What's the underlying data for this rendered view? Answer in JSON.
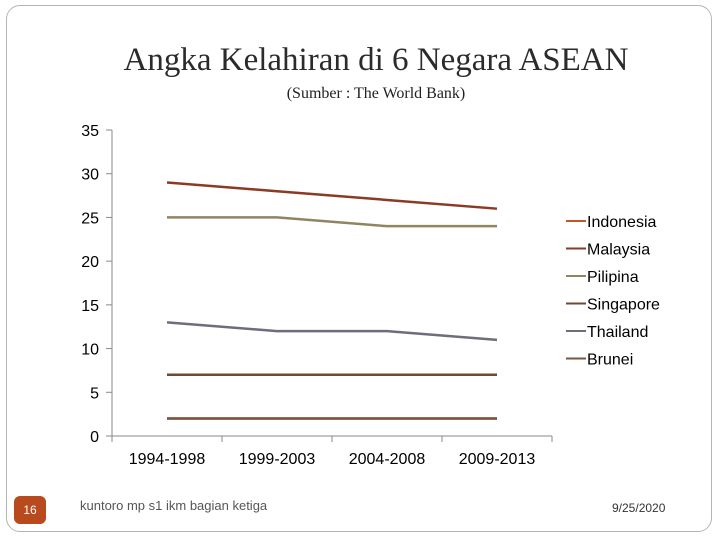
{
  "chart_data": {
    "type": "line",
    "title": "Angka Kelahiran di  6 Negara ASEAN",
    "subtitle": "(Sumber : The World Bank)",
    "categories": [
      "1994-1998",
      "1999-2003",
      "2004-2008",
      "2009-2013"
    ],
    "ylim": [
      0,
      35
    ],
    "yticks": [
      0,
      5,
      10,
      15,
      20,
      25,
      30,
      35
    ],
    "series": [
      {
        "name": "Indonesia",
        "color": "#c0572b",
        "values": [
          2,
          2,
          2,
          2
        ]
      },
      {
        "name": "Malaysia",
        "color": "#8b3a24",
        "values": [
          29,
          28,
          27,
          26
        ]
      },
      {
        "name": "Pilipina",
        "color": "#8f8561",
        "values": [
          25,
          25,
          24,
          24
        ]
      },
      {
        "name": "Singapore",
        "color": "#6e4a36",
        "values": [
          7,
          7,
          7,
          7
        ]
      },
      {
        "name": "Thailand",
        "color": "#6d6d7c",
        "values": [
          13,
          12,
          12,
          11
        ]
      },
      {
        "name": "Brunei",
        "color": "#7a5645",
        "values": [
          2,
          2,
          2,
          2
        ]
      }
    ],
    "legend_position": "right"
  },
  "footer": {
    "slide_number": "16",
    "author": "kuntoro mp s1 ikm bagian ketiga",
    "date": "9/25/2020"
  }
}
